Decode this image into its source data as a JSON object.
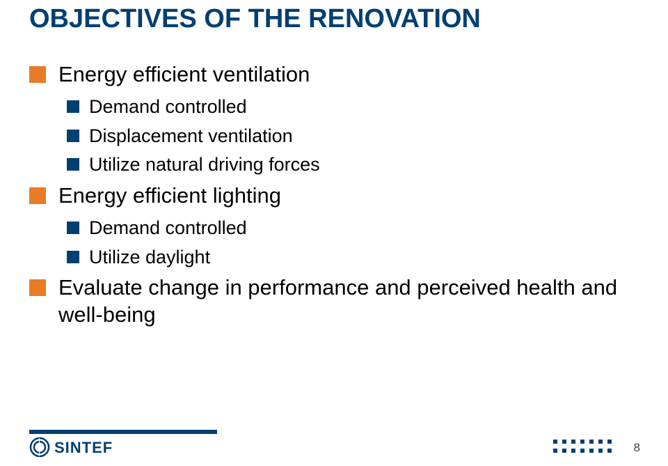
{
  "title": {
    "text": "OBJECTIVES OF THE RENOVATION",
    "fontsize": 38,
    "color": "#003f72"
  },
  "accent": {
    "lvl1_bullet": "#e97b27",
    "lvl2_bullet": "#003f72"
  },
  "items": [
    {
      "level": 1,
      "text": "Energy efficient ventilation"
    },
    {
      "level": 2,
      "text": "Demand controlled"
    },
    {
      "level": 2,
      "text": "Displacement ventilation"
    },
    {
      "level": 2,
      "text": "Utilize natural driving forces"
    },
    {
      "level": 1,
      "text": "Energy efficient lighting"
    },
    {
      "level": 2,
      "text": "Demand controlled"
    },
    {
      "level": 2,
      "text": "Utilize daylight"
    },
    {
      "level": 1,
      "text": "Evaluate change in performance and perceived health and well-being"
    }
  ],
  "footer": {
    "bar_color": "#003f72",
    "logo_text": "SINTEF",
    "page_number": "8",
    "dot_color": "#003f72"
  }
}
